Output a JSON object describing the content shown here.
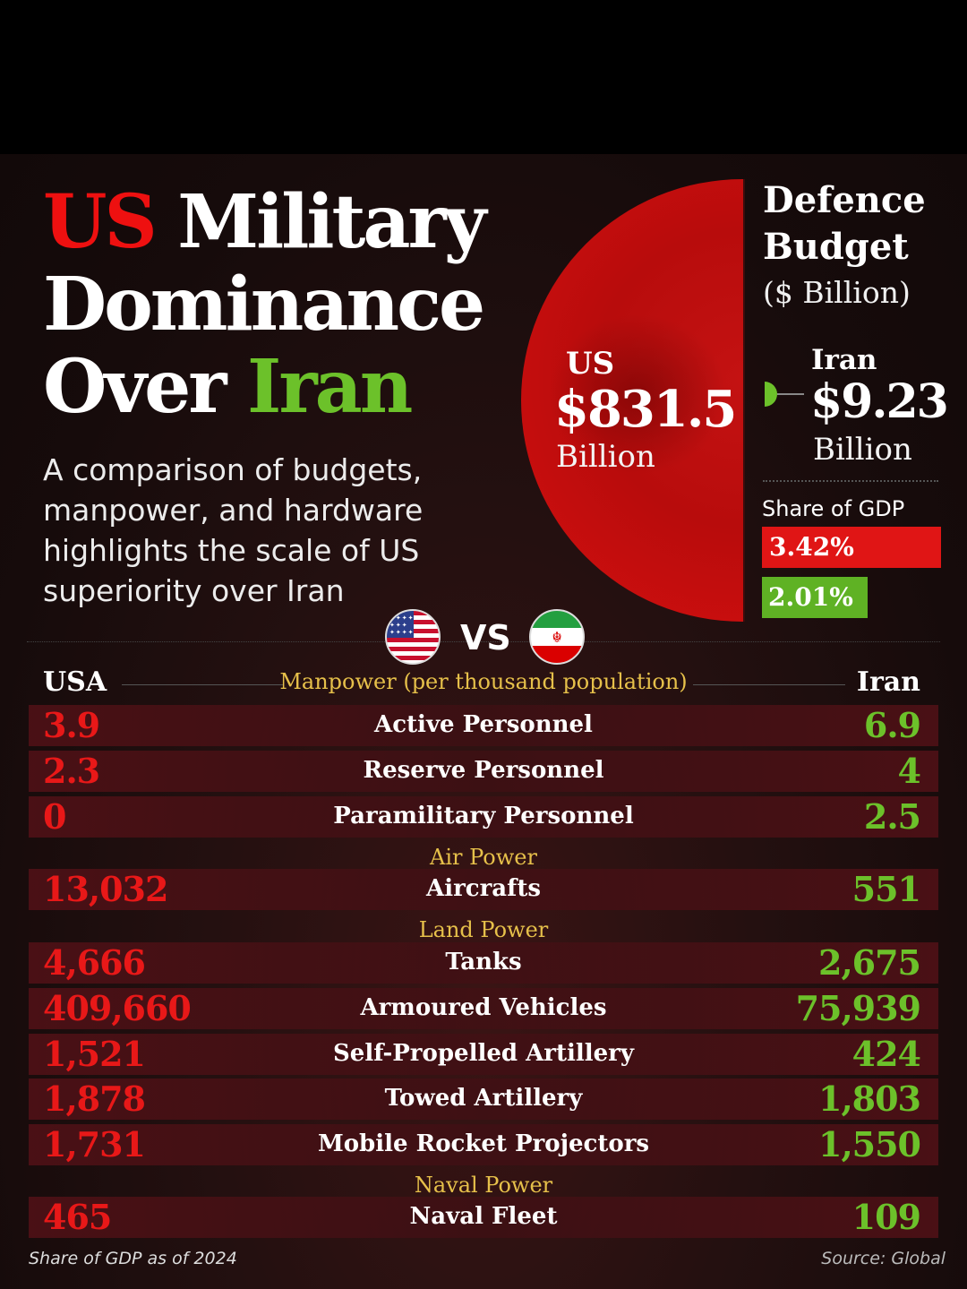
{
  "title": {
    "line1_us": "US",
    "line1_rest": "Military",
    "line2": "Dominance",
    "line3_over": "Over",
    "line3_iran": "Iran"
  },
  "subtitle": "A comparison of budgets, manpower, and hardware highlights the scale of US superiority over Iran",
  "budget": {
    "heading": "Defence Budget",
    "unit": "($ Billion)",
    "us_label": "US",
    "us_value": "$831.5",
    "us_unit": "Billion",
    "iran_label": "Iran",
    "iran_value": "$9.23",
    "iran_unit": "Billion",
    "gdp_label": "Share of GDP",
    "gdp_us": "3.42%",
    "gdp_iran": "2.01%"
  },
  "vs": "VS",
  "table": {
    "left_header": "USA",
    "right_header": "Iran",
    "sections": {
      "manpower": "Manpower (per thousand population)",
      "air": "Air Power",
      "land": "Land Power",
      "naval": "Naval Power"
    },
    "rows": [
      {
        "us": "3.9",
        "label": "Active Personnel",
        "iran": "6.9"
      },
      {
        "us": "2.3",
        "label": "Reserve Personnel",
        "iran": "4"
      },
      {
        "us": "0",
        "label": "Paramilitary Personnel",
        "iran": "2.5"
      },
      {
        "us": "13,032",
        "label": "Aircrafts",
        "iran": "551"
      },
      {
        "us": "4,666",
        "label": "Tanks",
        "iran": "2,675"
      },
      {
        "us": "409,660",
        "label": "Armoured Vehicles",
        "iran": "75,939"
      },
      {
        "us": "1,521",
        "label": "Self-Propelled Artillery",
        "iran": "424"
      },
      {
        "us": "1,878",
        "label": "Towed Artillery",
        "iran": "1,803"
      },
      {
        "us": "1,731",
        "label": "Mobile Rocket Projectors",
        "iran": "1,550"
      },
      {
        "us": "465",
        "label": "Naval Fleet",
        "iran": "109"
      }
    ]
  },
  "footer": {
    "note": "Share of GDP as of 2024",
    "source": "Source: Global"
  },
  "colors": {
    "us_red": "#e81818",
    "iran_green": "#6cc12a",
    "section_gold": "#e6c04a"
  }
}
